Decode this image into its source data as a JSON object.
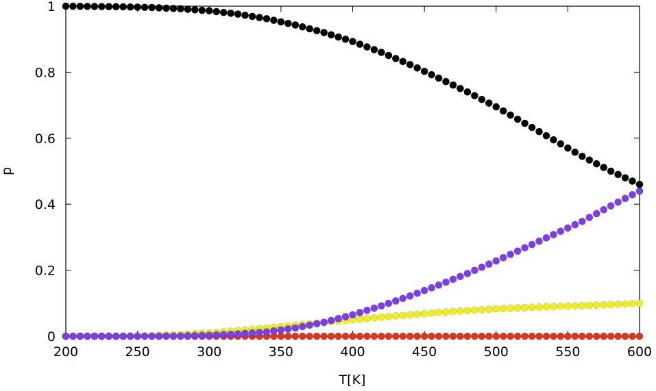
{
  "chart_data": {
    "type": "scatter",
    "xlabel": "T[K]",
    "ylabel": "p",
    "xlim": [
      200,
      600
    ],
    "ylim": [
      0,
      1
    ],
    "x_ticks": [
      200,
      250,
      300,
      350,
      400,
      450,
      500,
      550,
      600
    ],
    "y_ticks": [
      0,
      0.2,
      0.4,
      0.6,
      0.8,
      1
    ],
    "y_tick_labels": [
      "0",
      "0.2",
      "0.4",
      "0.6",
      "0.8",
      "1"
    ],
    "grid": false,
    "marker": "filled-circle",
    "x": [
      200,
      220,
      240,
      260,
      280,
      300,
      320,
      340,
      360,
      380,
      400,
      420,
      440,
      460,
      480,
      500,
      520,
      540,
      560,
      580,
      600
    ],
    "series": [
      {
        "color": "#000000",
        "values": [
          1.0,
          0.999,
          0.998,
          0.996,
          0.992,
          0.986,
          0.976,
          0.962,
          0.943,
          0.92,
          0.893,
          0.86,
          0.823,
          0.782,
          0.74,
          0.695,
          0.645,
          0.595,
          0.545,
          0.5,
          0.46
        ]
      },
      {
        "color": "#7b3fe4",
        "values": [
          0.0,
          0.0,
          0.0,
          0.0,
          0.001,
          0.003,
          0.007,
          0.013,
          0.025,
          0.042,
          0.065,
          0.092,
          0.122,
          0.155,
          0.19,
          0.228,
          0.268,
          0.308,
          0.348,
          0.395,
          0.44
        ]
      },
      {
        "color": "#eeee22",
        "values": [
          0.0,
          0.0,
          0.0,
          0.002,
          0.005,
          0.01,
          0.017,
          0.025,
          0.033,
          0.042,
          0.05,
          0.058,
          0.065,
          0.072,
          0.078,
          0.083,
          0.087,
          0.09,
          0.093,
          0.096,
          0.1
        ]
      },
      {
        "color": "#d9381e",
        "values": [
          0,
          0,
          0,
          0,
          0,
          0,
          0,
          0,
          0,
          0,
          0,
          0,
          0,
          0,
          0,
          0,
          0,
          0,
          0,
          0,
          0
        ]
      }
    ]
  }
}
